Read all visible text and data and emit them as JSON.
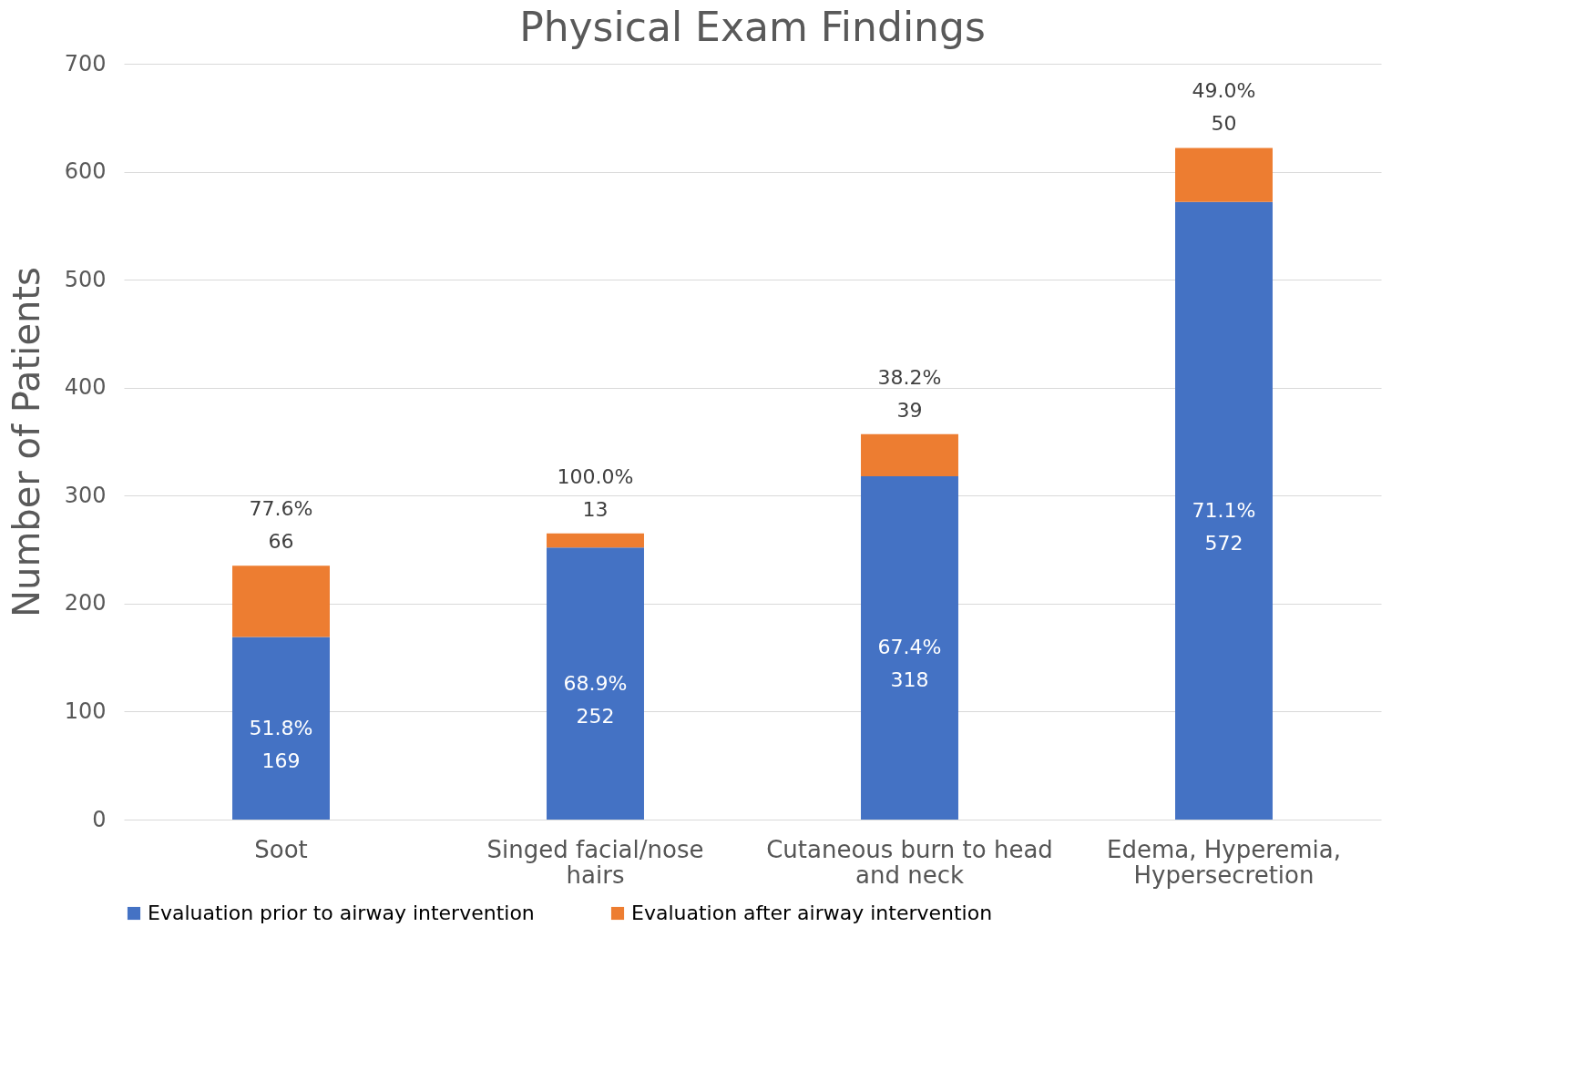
{
  "chart_data": {
    "type": "bar",
    "title": "Physical Exam Findings",
    "ylabel": "Number of Patients",
    "categories": [
      "Soot",
      "Singed facial/nose hairs",
      "Cutaneous burn to head and neck",
      "Edema, Hyperemia, Hypersecretion"
    ],
    "series": [
      {
        "name": "Evaluation prior to airway intervention",
        "color": "#4472c4",
        "values": [
          169,
          252,
          318,
          572
        ],
        "value_labels": [
          "51.8%\n169",
          "68.9%\n252",
          "67.4%\n318",
          "71.1%\n572"
        ]
      },
      {
        "name": "Evaluation after airway intervention",
        "color": "#ed7d31",
        "values": [
          66,
          13,
          39,
          50
        ],
        "value_labels": [
          "77.6%\n66",
          "100.0%\n13",
          "38.2%\n39",
          "49.0%\n50"
        ]
      }
    ],
    "stacked": true,
    "ylim": [
      0,
      700
    ],
    "yticks": [
      0,
      100,
      200,
      300,
      400,
      500,
      600,
      700
    ],
    "grid": "y",
    "legend": "bottom"
  }
}
